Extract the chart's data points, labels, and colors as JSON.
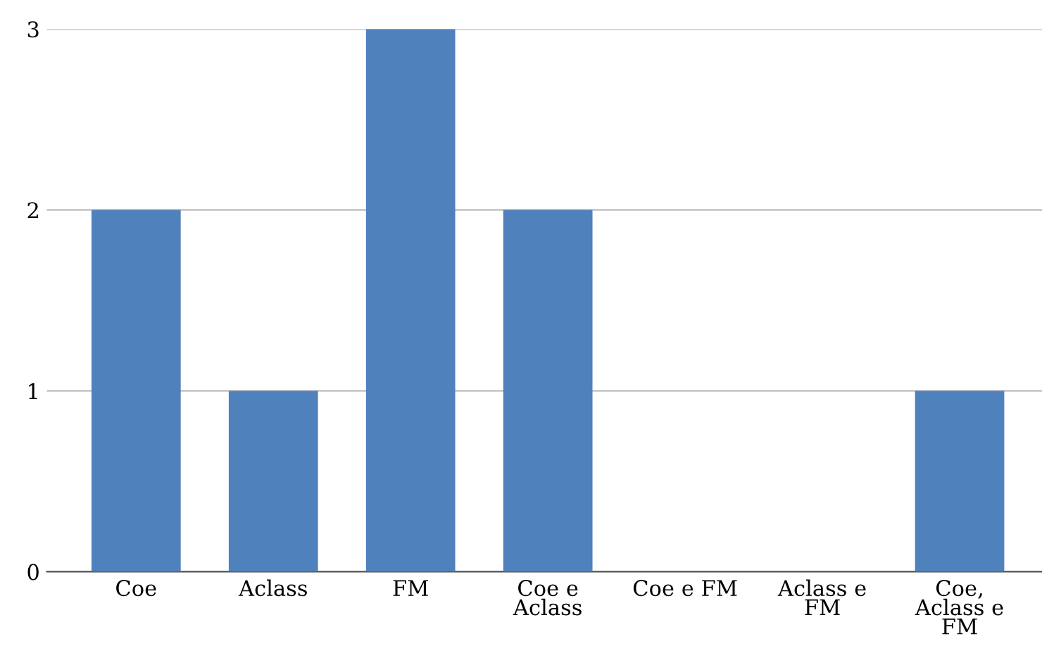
{
  "chart_data": {
    "type": "bar",
    "categories": [
      "Coe",
      "Aclass",
      "FM",
      "Coe e\nAclass",
      "Coe e FM",
      "Aclass e\nFM",
      "Coe,\nAclass e\nFM"
    ],
    "values": [
      2,
      1,
      3,
      2,
      0,
      0,
      1
    ],
    "color": "#4f81bd",
    "ylim": [
      0,
      3
    ],
    "yticks": [
      0,
      1,
      2,
      3
    ],
    "grid": "y"
  }
}
